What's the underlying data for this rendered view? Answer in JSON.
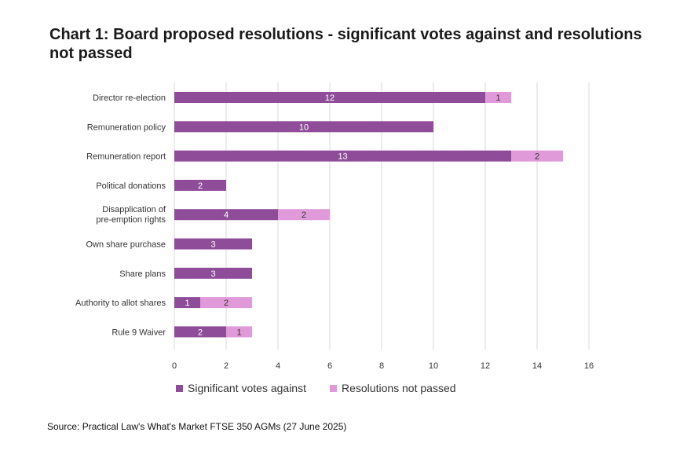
{
  "title": "Chart 1: Board proposed resolutions - significant votes against and resolutions not passed",
  "source": "Source: Practical Law's What's Market FTSE 350 AGMs (27 June 2025)",
  "colors": {
    "significant": "#8e4c99",
    "notpassed": "#e09ad9",
    "grid": "#d9d9d9"
  },
  "chart_data": {
    "type": "bar",
    "orientation": "horizontal",
    "stacked": true,
    "categories": [
      "Director re-election",
      "Remuneration policy",
      "Remuneration report",
      "Political donations",
      "Disapplication of pre-emption rights",
      "Own share purchase",
      "Share plans",
      "Authority to allot shares",
      "Rule 9 Waiver"
    ],
    "series": [
      {
        "name": "Significant votes against",
        "values": [
          12,
          10,
          13,
          2,
          4,
          3,
          3,
          1,
          2
        ]
      },
      {
        "name": "Resolutions not passed",
        "values": [
          1,
          0,
          2,
          0,
          2,
          0,
          0,
          2,
          1
        ]
      }
    ],
    "xlim": [
      0,
      16
    ],
    "xticks": [
      "0",
      "2",
      "4",
      "6",
      "8",
      "10",
      "12",
      "14",
      "16"
    ],
    "grid": true,
    "legend": "bottom"
  }
}
